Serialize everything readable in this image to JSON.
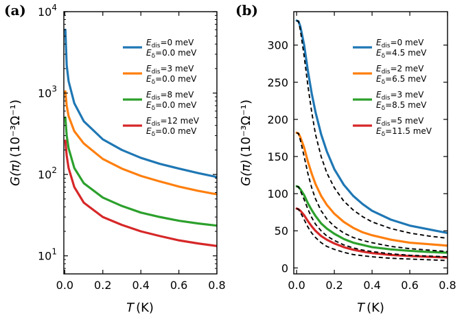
{
  "chart_data": [
    {
      "panel": "(a)",
      "type": "line",
      "yscale": "log",
      "xlabel_var": "T",
      "xlabel_unit": "(K)",
      "ylabel_var": "G(π)",
      "ylabel_unit": "(10⁻³Ω⁻¹)",
      "xlim": [
        -0.005,
        0.8
      ],
      "ylim": [
        6,
        10000
      ],
      "xticks": [
        0.0,
        0.2,
        0.4,
        0.6,
        0.8
      ],
      "xtick_labels": [
        "0.0",
        "0.2",
        "0.4",
        "0.6",
        "0.8"
      ],
      "ytick_labels": [
        {
          "value": 10,
          "base": "10",
          "exp": "1"
        },
        {
          "value": 100,
          "base": "10",
          "exp": "2"
        },
        {
          "value": 1000,
          "base": "10",
          "exp": "3"
        },
        {
          "value": 10000,
          "base": "10",
          "exp": "4"
        }
      ],
      "series": [
        {
          "name": "Edis=0 meV, Eδ=0.0 meV",
          "color": "#1f77b4",
          "line1_var": "E",
          "line1_sub": "dis",
          "line1_val": "=0 meV",
          "line2_var": "E",
          "line2_sub": "δ",
          "line2_val": "=0.0 meV",
          "x": [
            0.003,
            0.01,
            0.02,
            0.05,
            0.1,
            0.2,
            0.3,
            0.4,
            0.5,
            0.6,
            0.7,
            0.8
          ],
          "y": [
            6000,
            2200,
            1400,
            750,
            450,
            270,
            200,
            160,
            135,
            118,
            104,
            93
          ]
        },
        {
          "name": "Edis=3 meV, Eδ=0.0 meV",
          "color": "#ff7f0e",
          "line1_var": "E",
          "line1_sub": "dis",
          "line1_val": "=3 meV",
          "line2_var": "E",
          "line2_sub": "δ",
          "line2_val": "=0.0 meV",
          "x": [
            0.003,
            0.01,
            0.02,
            0.05,
            0.1,
            0.2,
            0.3,
            0.4,
            0.5,
            0.6,
            0.7,
            0.8
          ],
          "y": [
            1050,
            700,
            520,
            340,
            240,
            155,
            118,
            96,
            82,
            71,
            63,
            57
          ]
        },
        {
          "name": "Edis=8 meV, Eδ=0.0 meV",
          "color": "#2ca02c",
          "line1_var": "E",
          "line1_sub": "dis",
          "line1_val": "=8 meV",
          "line2_var": "E",
          "line2_sub": "δ",
          "line2_val": "=0.0 meV",
          "x": [
            0.003,
            0.01,
            0.02,
            0.05,
            0.1,
            0.2,
            0.3,
            0.4,
            0.5,
            0.6,
            0.7,
            0.8
          ],
          "y": [
            500,
            300,
            210,
            120,
            78,
            52,
            41,
            34,
            30,
            27,
            25,
            23.5
          ]
        },
        {
          "name": "Edis=12 meV, Eδ=0.0 meV",
          "color": "#d62728",
          "line1_var": "E",
          "line1_sub": "dis",
          "line1_val": "=12 meV",
          "line2_var": "E",
          "line2_sub": "δ",
          "line2_val": "=0.0 meV",
          "x": [
            0.003,
            0.01,
            0.02,
            0.05,
            0.1,
            0.2,
            0.3,
            0.4,
            0.5,
            0.6,
            0.7,
            0.8
          ],
          "y": [
            260,
            170,
            120,
            70,
            45,
            30,
            24,
            20,
            17.5,
            15.5,
            14.2,
            13.2
          ]
        }
      ]
    },
    {
      "panel": "(b)",
      "type": "line",
      "yscale": "linear",
      "xlabel_var": "T",
      "xlabel_unit": "(K)",
      "ylabel_var": "G(π)",
      "ylabel_unit": "(10⁻³Ω⁻¹)",
      "xlim": [
        -0.015,
        0.8
      ],
      "ylim": [
        -8,
        345
      ],
      "xticks": [
        0.0,
        0.2,
        0.4,
        0.6,
        0.8
      ],
      "xtick_labels": [
        "0.0",
        "0.2",
        "0.4",
        "0.6",
        "0.8"
      ],
      "yticks": [
        0,
        50,
        100,
        150,
        200,
        250,
        300
      ],
      "ytick_labels": [
        "0",
        "50",
        "100",
        "150",
        "200",
        "250",
        "300"
      ],
      "series": [
        {
          "name": "Edis=0 meV, Eδ=4.5 meV",
          "color": "#1f77b4",
          "line1_var": "E",
          "line1_sub": "dis",
          "line1_val": "=0 meV",
          "line2_var": "E",
          "line2_sub": "δ",
          "line2_val": "=4.5 meV",
          "x": [
            0.0,
            0.01,
            0.02,
            0.04,
            0.06,
            0.08,
            0.1,
            0.13,
            0.16,
            0.2,
            0.25,
            0.3,
            0.35,
            0.4,
            0.5,
            0.6,
            0.7,
            0.8
          ],
          "y": [
            333,
            332,
            325,
            300,
            265,
            235,
            210,
            180,
            157,
            133,
            112,
            97,
            86,
            77,
            65,
            57,
            52,
            47
          ],
          "fit_y": [
            333,
            332,
            320,
            285,
            245,
            210,
            180,
            150,
            128,
            108,
            90,
            78,
            69,
            62,
            53,
            47,
            43,
            40
          ]
        },
        {
          "name": "Edis=2 meV, Eδ=6.5 meV",
          "color": "#ff7f0e",
          "line1_var": "E",
          "line1_sub": "dis",
          "line1_val": "=2 meV",
          "line2_var": "E",
          "line2_sub": "δ",
          "line2_val": "=6.5 meV",
          "x": [
            0.0,
            0.01,
            0.02,
            0.04,
            0.06,
            0.08,
            0.1,
            0.13,
            0.16,
            0.2,
            0.25,
            0.3,
            0.35,
            0.4,
            0.5,
            0.6,
            0.7,
            0.8
          ],
          "y": [
            182,
            181,
            176,
            162,
            143,
            127,
            113,
            97,
            85,
            73,
            62,
            54,
            48,
            44,
            38,
            34,
            32,
            30
          ],
          "fit_y": [
            182,
            181,
            172,
            150,
            127,
            108,
            93,
            77,
            66,
            56,
            47,
            41,
            37,
            34,
            29,
            26,
            24,
            22
          ]
        },
        {
          "name": "Edis=3 meV, Eδ=8.5 meV",
          "color": "#2ca02c",
          "line1_var": "E",
          "line1_sub": "dis",
          "line1_val": "=3 meV",
          "line2_var": "E",
          "line2_sub": "δ",
          "line2_val": "=8.5 meV",
          "x": [
            0.0,
            0.01,
            0.02,
            0.04,
            0.06,
            0.08,
            0.1,
            0.13,
            0.16,
            0.2,
            0.25,
            0.3,
            0.35,
            0.4,
            0.5,
            0.6,
            0.7,
            0.8
          ],
          "y": [
            110,
            109,
            106,
            98,
            87,
            78,
            70,
            60,
            53,
            46,
            39,
            34,
            31,
            28,
            25,
            23,
            21.5,
            20.5
          ],
          "fit_y": [
            110,
            109,
            104,
            92,
            79,
            68,
            59,
            50,
            43,
            37,
            31,
            27,
            24,
            22,
            19,
            17,
            16,
            15
          ]
        },
        {
          "name": "Edis=5 meV, Eδ=11.5 meV",
          "color": "#d62728",
          "line1_var": "E",
          "line1_sub": "dis",
          "line1_val": "=5 meV",
          "line2_var": "E",
          "line2_sub": "δ",
          "line2_val": "=11.5 meV",
          "x": [
            0.0,
            0.01,
            0.02,
            0.04,
            0.06,
            0.08,
            0.1,
            0.13,
            0.16,
            0.2,
            0.25,
            0.3,
            0.35,
            0.4,
            0.5,
            0.6,
            0.7,
            0.8
          ],
          "y": [
            80,
            79,
            77,
            71,
            63,
            56,
            50,
            43,
            38,
            33,
            28,
            24.5,
            22,
            20,
            17.5,
            16,
            15,
            14
          ],
          "fit_y": [
            80,
            79,
            75,
            65,
            55,
            47,
            41,
            34,
            29,
            25,
            21,
            18,
            16.5,
            15,
            13,
            12,
            11,
            10
          ]
        }
      ]
    }
  ]
}
